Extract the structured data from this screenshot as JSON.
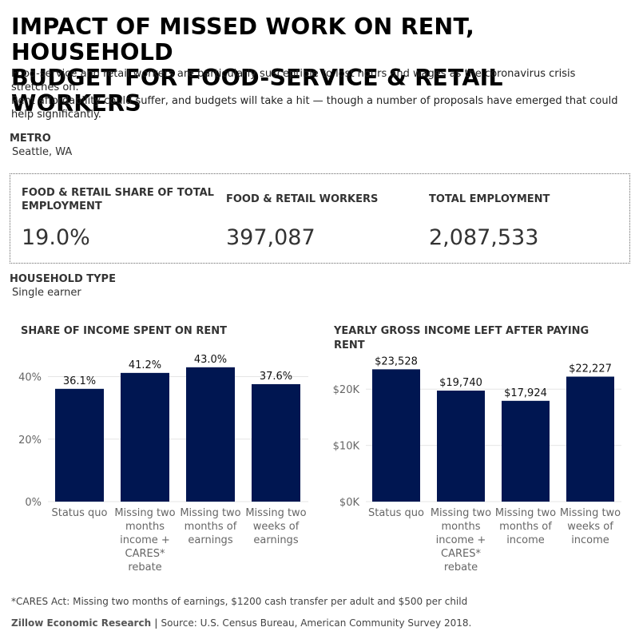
{
  "header": {
    "title_line1": "IMPACT OF MISSED WORK ON RENT, HOUSEHOLD",
    "title_line2": "BUDGET FOR FOOD-SERVICE & RETAIL WORKERS",
    "subtitle_line1": "Food-service and retail workers are particularly susceptible to lost hours and wages as the coronavirus crisis",
    "subtitle_line2": "stretches on.",
    "subtitle_line3": "Rent affordability could suffer, and budgets will take a hit — though a number of proposals have emerged that could",
    "subtitle_line4": "help significantly."
  },
  "metro": {
    "label": "METRO",
    "value": "Seattle, WA"
  },
  "kpis": [
    {
      "label_line1": "FOOD & RETAIL SHARE OF TOTAL",
      "label_line2": "EMPLOYMENT",
      "value": "19.0%"
    },
    {
      "label_line1": "FOOD & RETAIL WORKERS",
      "label_line2": "",
      "value": "397,087"
    },
    {
      "label_line1": "TOTAL EMPLOYMENT",
      "label_line2": "",
      "value": "2,087,533"
    }
  ],
  "household": {
    "label": "HOUSEHOLD TYPE",
    "value": "Single earner"
  },
  "colors": {
    "bar": "#001651",
    "gridline": "#e6e6e6",
    "axis_text": "#666666"
  },
  "chart_data": [
    {
      "type": "bar",
      "title_line1": "SHARE OF INCOME SPENT ON RENT",
      "title_line2": "",
      "categories": [
        [
          "Status quo"
        ],
        [
          "Missing two",
          "months",
          "income +",
          "CARES*",
          "rebate"
        ],
        [
          "Missing two",
          "months of",
          "earnings"
        ],
        [
          "Missing two",
          "weeks of",
          "earnings"
        ]
      ],
      "values": [
        36.1,
        41.2,
        43.0,
        37.6
      ],
      "data_labels": [
        "36.1%",
        "41.2%",
        "43.0%",
        "37.6%"
      ],
      "ylim": [
        0,
        45
      ],
      "yticks": [
        0,
        20,
        40
      ],
      "ytick_labels": [
        "0%",
        "20%",
        "40%"
      ],
      "grid": true
    },
    {
      "type": "bar",
      "title_line1": "YEARLY GROSS INCOME LEFT AFTER PAYING",
      "title_line2": "RENT",
      "categories": [
        [
          "Status quo"
        ],
        [
          "Missing two",
          "months",
          "income +",
          "CARES*",
          "rebate"
        ],
        [
          "Missing two",
          "months of",
          "income"
        ],
        [
          "Missing two",
          "weeks of",
          "income"
        ]
      ],
      "values": [
        23528,
        19740,
        17924,
        22227
      ],
      "data_labels": [
        "$23,528",
        "$19,740",
        "$17,924",
        "$22,227"
      ],
      "ylim": [
        0,
        25000
      ],
      "yticks": [
        0,
        10000,
        20000
      ],
      "ytick_labels": [
        "$0K",
        "$10K",
        "$20K"
      ],
      "grid": true
    }
  ],
  "footer": {
    "footnote": "*CARES Act: Missing two months of earnings, $1200 cash transfer per adult and $500 per child",
    "source_org": "Zillow Economic Research |",
    "source_text": " Source: U.S. Census Bureau, American Community Survey 2018."
  }
}
